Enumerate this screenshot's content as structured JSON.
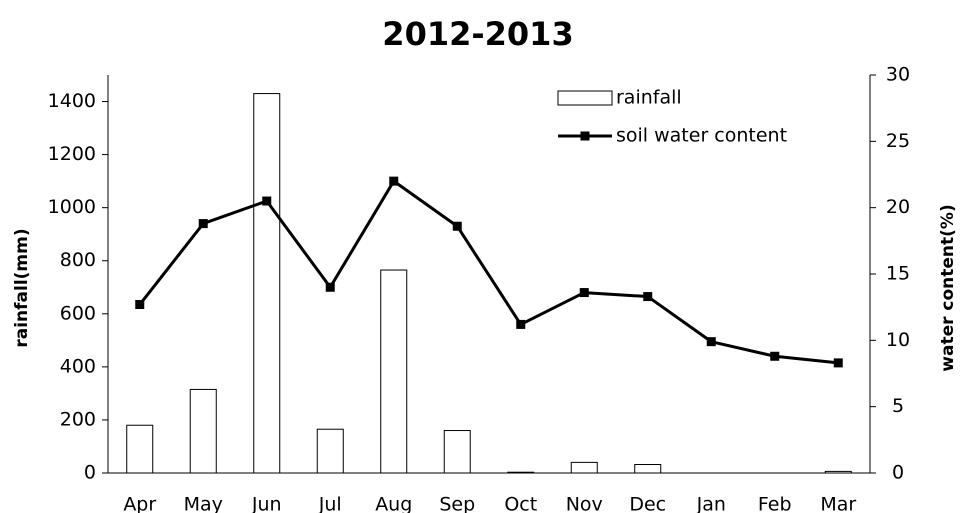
{
  "chart_data": {
    "type": "combo",
    "title": "2012-2013",
    "y_label": "rainfall(mm)",
    "y2_label": "water content(%)",
    "categories": [
      "Apr",
      "May",
      "Jun",
      "Jul",
      "Aug",
      "Sep",
      "Oct",
      "Nov",
      "Dec",
      "Jan",
      "Feb",
      "Mar"
    ],
    "series": [
      {
        "name": "rainfall",
        "type": "bar",
        "color": "#ffffff",
        "values": [
          180,
          315,
          1430,
          165,
          765,
          160,
          3,
          40,
          32,
          0,
          0,
          6
        ]
      },
      {
        "name": "soil water content",
        "type": "line",
        "color": "#000000",
        "axis": "y2",
        "values": [
          12.7,
          18.8,
          20.5,
          14.0,
          22.0,
          18.6,
          11.2,
          13.6,
          13.3,
          9.9,
          8.8,
          8.3
        ]
      }
    ],
    "ylim": [
      0,
      1500
    ],
    "yticks": [
      0,
      200,
      400,
      600,
      800,
      1000,
      1200,
      1400
    ],
    "y2lim": [
      0,
      30
    ],
    "y2ticks": [
      0,
      5,
      10,
      15,
      20,
      25,
      30
    ]
  }
}
